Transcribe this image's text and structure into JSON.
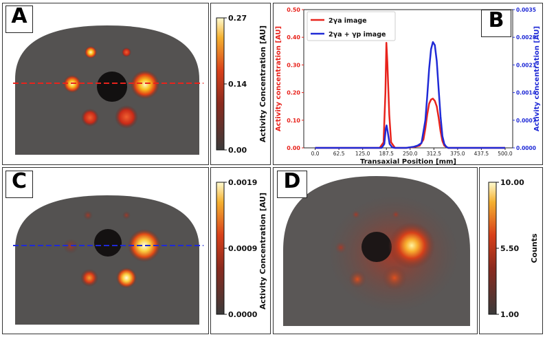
{
  "panels": {
    "a": {
      "label": "A",
      "colorbar": {
        "ticks": [
          "0.27",
          "0.14",
          "0.00"
        ],
        "title": "Activity Concentration [AU]",
        "max_value": 0.27,
        "min_value": 0.0
      }
    },
    "b": {
      "label": "B"
    },
    "c": {
      "label": "C",
      "colorbar": {
        "ticks": [
          "0.0019",
          "0.0009",
          "0.0000"
        ],
        "title": "Activity Concentration [AU]",
        "max_value": 0.0019,
        "min_value": 0.0
      }
    },
    "d": {
      "label": "D",
      "colorbar": {
        "ticks": [
          "10.00",
          "5.50",
          "1.00"
        ],
        "title": "Counts",
        "max_value": 10.0,
        "min_value": 1.0
      }
    }
  },
  "colors": {
    "red_series": "#e8231c",
    "blue_series": "#1f2ad6",
    "profile_a": "#e8231c",
    "profile_c": "#1f2ad6"
  },
  "chart_data": {
    "type": "line",
    "xlabel": "Transaxial Position [mm]",
    "ylabel_left": "Activity concentration [AU]",
    "ylabel_right": "Activity concentration [AU]",
    "xlim": [
      -30,
      520
    ],
    "ylim_left": [
      0,
      0.5
    ],
    "ylim_right": [
      0,
      0.0035
    ],
    "x_ticks": [
      "0.0",
      "62.5",
      "125.0",
      "187.5",
      "250.0",
      "312.5",
      "375.0",
      "437.5",
      "500.0"
    ],
    "y_ticks_left": [
      "0.00",
      "0.10",
      "0.20",
      "0.30",
      "0.40",
      "0.50"
    ],
    "y_ticks_right": [
      "0.0000",
      "0.0007",
      "0.0014",
      "0.0021",
      "0.0028",
      "0.0035"
    ],
    "legend": {
      "position": "top-left",
      "entries": [
        "2γa image",
        "2γa + γp image"
      ]
    },
    "series": [
      {
        "name": "2γa image",
        "axis": "left",
        "x": [
          0,
          150,
          170,
          180,
          185,
          187.5,
          190,
          195,
          200,
          210,
          240,
          260,
          275,
          285,
          290,
          295,
          300,
          305,
          310,
          315,
          320,
          325,
          330,
          335,
          340,
          350,
          370,
          400,
          500
        ],
        "y": [
          0,
          0,
          0,
          0.02,
          0.2,
          0.38,
          0.31,
          0.12,
          0.02,
          0,
          0,
          0.003,
          0.008,
          0.03,
          0.07,
          0.12,
          0.16,
          0.175,
          0.178,
          0.17,
          0.15,
          0.11,
          0.06,
          0.025,
          0.008,
          0,
          0,
          0,
          0
        ]
      },
      {
        "name": "2γa + γp image",
        "axis": "right",
        "x": [
          0,
          150,
          175,
          182,
          186,
          188,
          191,
          196,
          203,
          210,
          240,
          260,
          270,
          280,
          290,
          295,
          300,
          305,
          310,
          315,
          320,
          325,
          330,
          335,
          340,
          345,
          350,
          360,
          380,
          400,
          500
        ],
        "y": [
          0,
          0,
          0,
          0.0001,
          0.0005,
          0.00057,
          0.0004,
          0.0001,
          1e-05,
          0,
          0,
          3e-05,
          6e-05,
          0.00012,
          0.0007,
          0.0013,
          0.002,
          0.0025,
          0.00268,
          0.0026,
          0.0022,
          0.0015,
          0.0008,
          0.0003,
          0.0001,
          3e-05,
          0,
          0,
          0,
          0,
          0
        ]
      }
    ]
  }
}
